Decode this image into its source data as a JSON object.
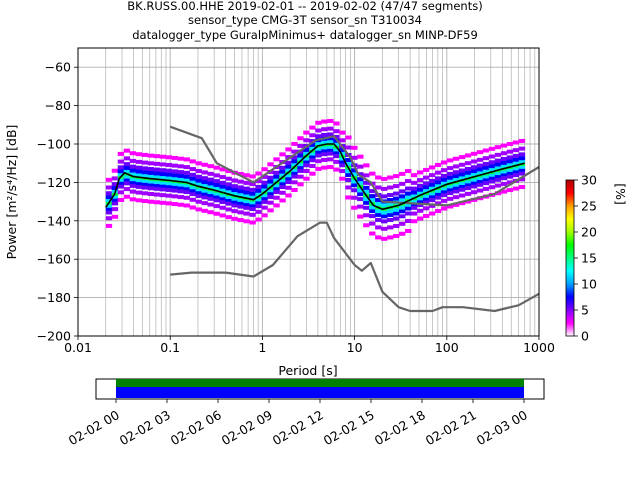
{
  "title_lines": [
    "BK.RUSS.00.HHE   2019-02-01 -- 2019-02-02  (47/47 segments)",
    "sensor_type CMG-3T sensor_sn T310034",
    "datalogger_type GuralpMinimus+ datalogger_sn MINP-DF59"
  ],
  "chart_data": {
    "type": "line",
    "xlabel": "Period [s]",
    "ylabel": "Power [m²/s⁴/Hz] [dB]",
    "xscale": "log",
    "xlim": [
      0.01,
      1000
    ],
    "ylim": [
      -200,
      -50
    ],
    "xticks": [
      0.01,
      0.1,
      1,
      10,
      100,
      1000
    ],
    "xtick_labels": [
      "0.01",
      "0.1",
      "1",
      "10",
      "100",
      "1000"
    ],
    "yticks": [
      -200,
      -180,
      -160,
      -140,
      -120,
      -100,
      -80,
      -60
    ],
    "ytick_labels": [
      "−200",
      "−180",
      "−160",
      "−140",
      "−120",
      "−100",
      "−80",
      "−60"
    ],
    "grid": true,
    "series": [
      {
        "color": "#666666",
        "points": [
          [
            0.1,
            -91
          ],
          [
            0.22,
            -97
          ],
          [
            0.32,
            -110
          ],
          [
            0.8,
            -120
          ],
          [
            3.8,
            -98
          ],
          [
            6,
            -96
          ],
          [
            9,
            -107
          ],
          [
            11,
            -116
          ],
          [
            15,
            -120
          ],
          [
            20,
            -130
          ],
          [
            100,
            -132
          ],
          [
            330,
            -126
          ],
          [
            1000,
            -112
          ]
        ]
      },
      {
        "color": "#666666",
        "points": [
          [
            0.1,
            -168
          ],
          [
            0.17,
            -167
          ],
          [
            0.4,
            -167
          ],
          [
            0.8,
            -169
          ],
          [
            1.3,
            -163
          ],
          [
            2.4,
            -148
          ],
          [
            4.2,
            -141
          ],
          [
            5,
            -141
          ],
          [
            6,
            -149
          ],
          [
            10,
            -163
          ],
          [
            12,
            -166
          ],
          [
            15,
            -162
          ],
          [
            20,
            -177
          ],
          [
            30,
            -185
          ],
          [
            40,
            -187
          ],
          [
            70,
            -187
          ],
          [
            90,
            -185
          ],
          [
            150,
            -185
          ],
          [
            330,
            -187
          ],
          [
            600,
            -184
          ],
          [
            1000,
            -178
          ]
        ]
      },
      {
        "color": "#000000",
        "points": [
          [
            0.02,
            -133
          ],
          [
            0.025,
            -126
          ],
          [
            0.028,
            -118
          ],
          [
            0.032,
            -115
          ],
          [
            0.04,
            -117
          ],
          [
            0.06,
            -118
          ],
          [
            0.1,
            -119
          ],
          [
            0.15,
            -120
          ],
          [
            0.2,
            -122
          ],
          [
            0.3,
            -124
          ],
          [
            0.5,
            -127
          ],
          [
            0.8,
            -129
          ],
          [
            1,
            -126
          ],
          [
            1.5,
            -119
          ],
          [
            2,
            -114
          ],
          [
            3,
            -106
          ],
          [
            4,
            -101
          ],
          [
            5,
            -100
          ],
          [
            6,
            -100
          ],
          [
            7,
            -104
          ],
          [
            8,
            -110
          ],
          [
            10,
            -118
          ],
          [
            13,
            -126
          ],
          [
            16,
            -132
          ],
          [
            20,
            -134
          ],
          [
            30,
            -132
          ],
          [
            50,
            -127
          ],
          [
            100,
            -121
          ],
          [
            200,
            -117
          ],
          [
            400,
            -113
          ],
          [
            700,
            -110
          ]
        ]
      }
    ],
    "colorbar": {
      "label": "[%]",
      "range": [
        0,
        30
      ],
      "ticks": [
        0,
        5,
        10,
        15,
        20,
        25,
        30
      ],
      "tick_labels": [
        "0",
        "5",
        "10",
        "15",
        "20",
        "25",
        "30"
      ],
      "colors": [
        "#ffffff",
        "#ff00ff",
        "#8000ff",
        "#0000ff",
        "#00a0ff",
        "#00ffff",
        "#00ff80",
        "#00ff00",
        "#a0ff00",
        "#ffff00",
        "#ffa000",
        "#ff0000",
        "#b00000"
      ]
    },
    "density_band": {
      "center_offsets_db": [
        -12,
        -8,
        -5,
        -3,
        -1.5,
        0,
        1.5,
        3,
        5,
        8,
        12
      ],
      "colors": [
        "#ff00ff",
        "#a000ff",
        "#6a00ff",
        "#0000ff",
        "#00e0ff",
        "#00ff40",
        "#00e0ff",
        "#0000ff",
        "#6a00ff",
        "#a000ff",
        "#ff00ff"
      ]
    },
    "coverage": {
      "tick_labels": [
        "02-02 00",
        "02-02 03",
        "02-02 06",
        "02-02 09",
        "02-02 12",
        "02-02 15",
        "02-02 18",
        "02-02 21",
        "02-03 00"
      ],
      "top_color": "#008000",
      "bottom_color": "#0000ff"
    }
  }
}
